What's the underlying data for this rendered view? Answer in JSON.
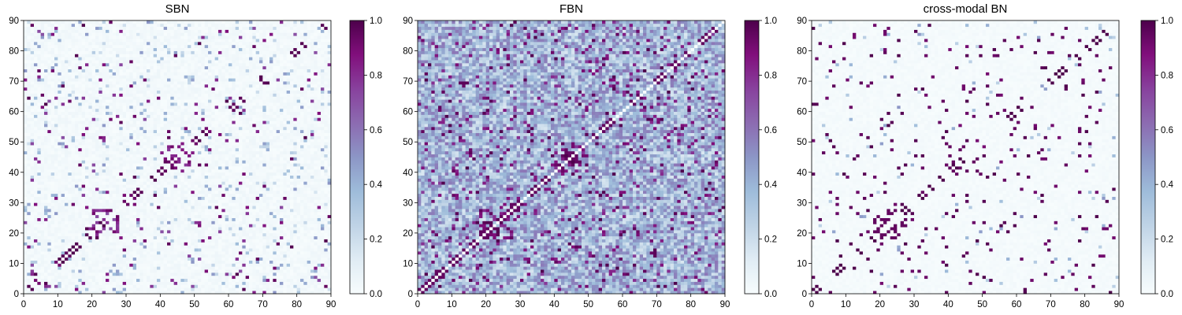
{
  "chart_data": [
    {
      "type": "heatmap",
      "title": "SBN",
      "xlim": [
        0,
        90
      ],
      "ylim": [
        0,
        90
      ],
      "x_ticks": [
        "0",
        "10",
        "20",
        "30",
        "40",
        "50",
        "60",
        "70",
        "80",
        "90"
      ],
      "y_ticks": [
        "0",
        "10",
        "20",
        "30",
        "40",
        "50",
        "60",
        "70",
        "80",
        "90"
      ],
      "colorbar": {
        "range": [
          0.0,
          1.0
        ],
        "ticks": [
          "0.0",
          "0.2",
          "0.4",
          "0.6",
          "0.8",
          "1.0"
        ]
      },
      "colormap": "BuPu",
      "grid": false,
      "matrix_size": 90
    },
    {
      "type": "heatmap",
      "title": "FBN",
      "xlim": [
        0,
        90
      ],
      "ylim": [
        0,
        90
      ],
      "x_ticks": [
        "0",
        "10",
        "20",
        "30",
        "40",
        "50",
        "60",
        "70",
        "80",
        "90"
      ],
      "y_ticks": [
        "0",
        "10",
        "20",
        "30",
        "40",
        "50",
        "60",
        "70",
        "80",
        "90"
      ],
      "colorbar": {
        "range": [
          0.0,
          1.0
        ],
        "ticks": [
          "0.0",
          "0.2",
          "0.4",
          "0.6",
          "0.8",
          "1.0"
        ]
      },
      "colormap": "BuPu",
      "grid": false,
      "matrix_size": 90
    },
    {
      "type": "heatmap",
      "title": "cross-modal BN",
      "xlim": [
        0,
        90
      ],
      "ylim": [
        0,
        90
      ],
      "x_ticks": [
        "0",
        "10",
        "20",
        "30",
        "40",
        "50",
        "60",
        "70",
        "80",
        "90"
      ],
      "y_ticks": [
        "0",
        "10",
        "20",
        "30",
        "40",
        "50",
        "60",
        "70",
        "80",
        "90"
      ],
      "colorbar": {
        "range": [
          0.0,
          1.0
        ],
        "ticks": [
          "0.0",
          "0.2",
          "0.4",
          "0.6",
          "0.8",
          "1.0"
        ]
      },
      "colormap": "BuPu",
      "grid": false,
      "matrix_size": 90
    }
  ],
  "colors": {
    "colormap_stops": [
      "#f7fcfd",
      "#e0ecf4",
      "#bfd3e6",
      "#9ebcda",
      "#8c96c6",
      "#8c6bb1",
      "#88419d",
      "#810f7c",
      "#4d004b"
    ],
    "axis": "#000000",
    "background": "#ffffff"
  }
}
